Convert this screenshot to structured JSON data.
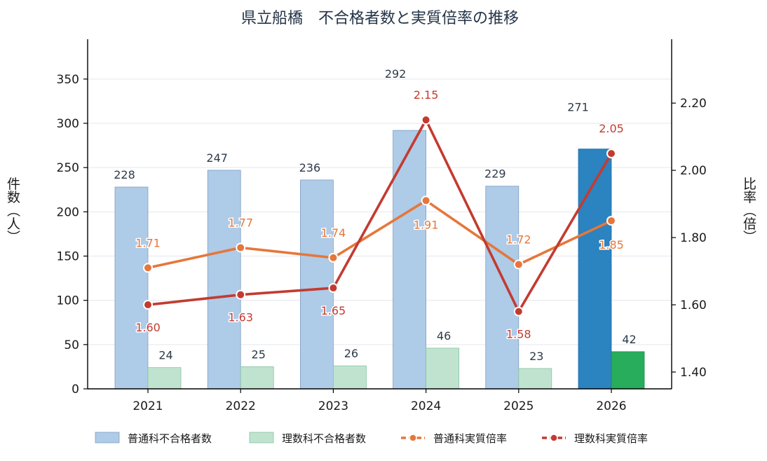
{
  "chart_data": {
    "type": "bar",
    "title": "県立船橋　不合格者数と実質倍率の推移",
    "categories": [
      "2021",
      "2022",
      "2023",
      "2024",
      "2025",
      "2026"
    ],
    "ylabel_left": "件数（人）",
    "ylabel_right": "比率（倍）",
    "ylim_left": [
      0,
      395
    ],
    "yticks_left": [
      "0",
      "50",
      "100",
      "150",
      "200",
      "250",
      "300",
      "350"
    ],
    "ylim_right": [
      1.35,
      2.39
    ],
    "yticks_right": [
      "1.40",
      "1.60",
      "1.80",
      "2.00",
      "2.20"
    ],
    "grid": true,
    "legend_position": "bottom",
    "series": [
      {
        "name": "普通科不合格者数",
        "kind": "bar",
        "values": [
          228,
          247,
          236,
          292,
          229,
          271
        ],
        "labels": [
          "228",
          "247",
          "236",
          "292",
          "229",
          "271"
        ],
        "color": "#aecbe8",
        "highlight_color": "#2b83c0"
      },
      {
        "name": "理数科不合格者数",
        "kind": "bar",
        "values": [
          24,
          25,
          26,
          46,
          23,
          42
        ],
        "labels": [
          "24",
          "25",
          "26",
          "46",
          "23",
          "42"
        ],
        "color": "#c0e3d0",
        "highlight_color": "#27ad5b"
      },
      {
        "name": "普通科実質倍率",
        "kind": "line",
        "axis": "right",
        "values": [
          1.71,
          1.77,
          1.74,
          1.91,
          1.72,
          1.85
        ],
        "labels": [
          "1.71",
          "1.77",
          "1.74",
          "1.91",
          "1.72",
          "1.85"
        ],
        "color": "#e5773b"
      },
      {
        "name": "理数科実質倍率",
        "kind": "line",
        "axis": "right",
        "values": [
          1.6,
          1.63,
          1.65,
          2.15,
          1.58,
          2.05
        ],
        "labels": [
          "1.60",
          "1.63",
          "1.65",
          "2.15",
          "1.58",
          "2.05"
        ],
        "color": "#c33b30"
      }
    ]
  }
}
